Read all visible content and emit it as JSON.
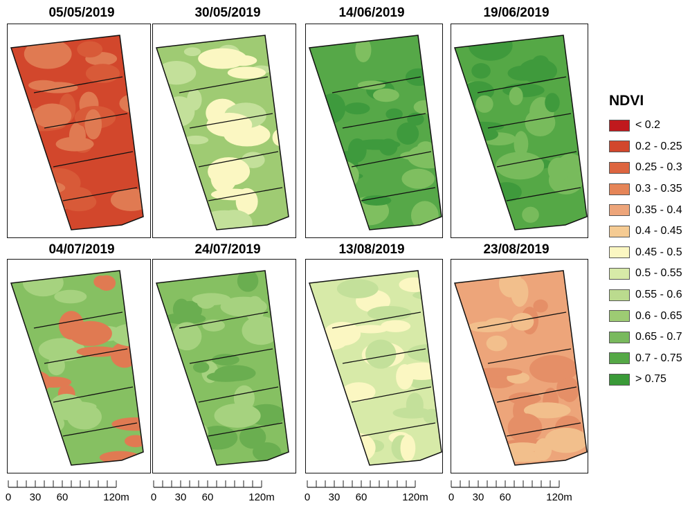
{
  "panels": [
    {
      "date": "05/05/2019",
      "palette": [
        "#d2472c",
        "#d85a38",
        "#e07a52"
      ]
    },
    {
      "date": "30/05/2019",
      "palette": [
        "#9fcb73",
        "#c3e09a",
        "#fbf7c2"
      ]
    },
    {
      "date": "14/06/2019",
      "palette": [
        "#56a848",
        "#3e9a3d",
        "#7fbf60"
      ]
    },
    {
      "date": "19/06/2019",
      "palette": [
        "#55a846",
        "#3f9a3c",
        "#78bb5c"
      ]
    },
    {
      "date": "04/07/2019",
      "palette": [
        "#86c062",
        "#a6d27f",
        "#e07a52"
      ]
    },
    {
      "date": "24/07/2019",
      "palette": [
        "#86c062",
        "#6aae50",
        "#a6d27f"
      ]
    },
    {
      "date": "13/08/2019",
      "palette": [
        "#d7eaa8",
        "#fbf7c2",
        "#c3e09a"
      ]
    },
    {
      "date": "23/08/2019",
      "palette": [
        "#eda57a",
        "#e58f67",
        "#f2bf8c"
      ]
    }
  ],
  "scalebar": {
    "ticks": [
      "0",
      "30",
      "60",
      "120m"
    ]
  },
  "legend": {
    "title": "NDVI",
    "items": [
      {
        "label": "< 0.2",
        "color": "#c0191d"
      },
      {
        "label": "0.2 - 0.25",
        "color": "#d2472c"
      },
      {
        "label": "0.25 - 0.3",
        "color": "#dd6540"
      },
      {
        "label": "0.3 - 0.35",
        "color": "#e58558"
      },
      {
        "label": "0.35 - 0.4",
        "color": "#eda57a"
      },
      {
        "label": "0.4 - 0.45",
        "color": "#f5cb93"
      },
      {
        "label": "0.45 - 0.5",
        "color": "#fbf7c2"
      },
      {
        "label": "0.5 - 0.55",
        "color": "#d7eaa8"
      },
      {
        "label": "0.55 - 0.6",
        "color": "#bbdb8e"
      },
      {
        "label": "0.6 - 0.65",
        "color": "#9dcb73"
      },
      {
        "label": "0.65 - 0.7",
        "color": "#79b95d"
      },
      {
        "label": "0.7 - 0.75",
        "color": "#55a846"
      },
      {
        "label": "> 0.75",
        "color": "#3a9a38"
      }
    ]
  }
}
